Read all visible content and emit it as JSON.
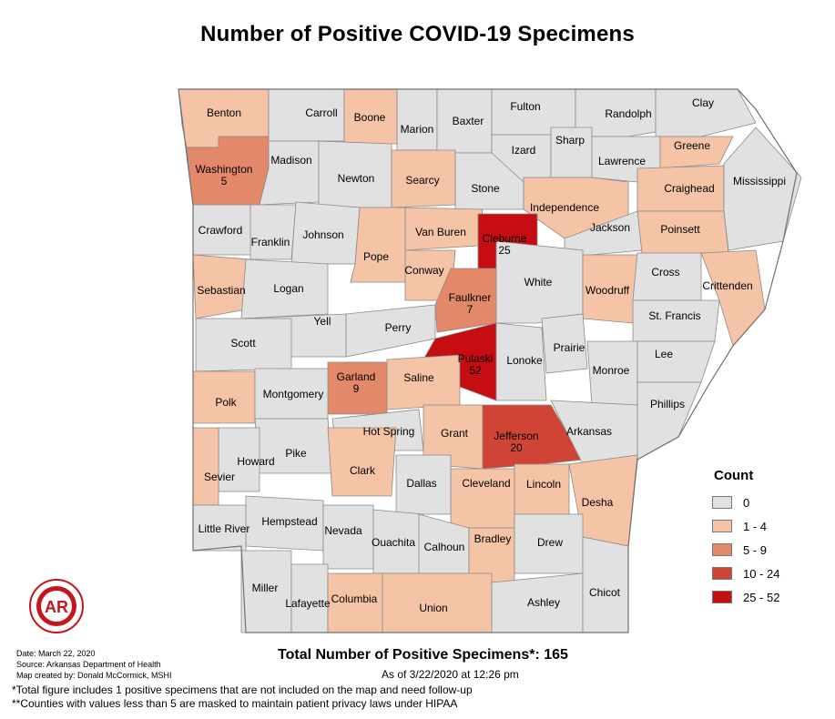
{
  "title": "Number of Positive COVID-19 Specimens",
  "legend": {
    "title": "Count",
    "classes": [
      {
        "label": "0",
        "color": "#e1e1e1"
      },
      {
        "label": "1 - 4",
        "color": "#f5c3a5"
      },
      {
        "label": "5 - 9",
        "color": "#e3896a"
      },
      {
        "label": "10 - 24",
        "color": "#cf4434"
      },
      {
        "label": "25 - 52",
        "color": "#c50d12"
      }
    ]
  },
  "counties": [
    {
      "name": "Benton",
      "cls": 1
    },
    {
      "name": "Carroll",
      "cls": 0
    },
    {
      "name": "Boone",
      "cls": 1
    },
    {
      "name": "Marion",
      "cls": 0
    },
    {
      "name": "Baxter",
      "cls": 0
    },
    {
      "name": "Fulton",
      "cls": 0
    },
    {
      "name": "Randolph",
      "cls": 0
    },
    {
      "name": "Clay",
      "cls": 0
    },
    {
      "name": "Washington",
      "count": "5",
      "cls": 2
    },
    {
      "name": "Madison",
      "cls": 0
    },
    {
      "name": "Newton",
      "cls": 0
    },
    {
      "name": "Searcy",
      "cls": 1
    },
    {
      "name": "Stone",
      "cls": 0
    },
    {
      "name": "Izard",
      "cls": 0
    },
    {
      "name": "Sharp",
      "cls": 0
    },
    {
      "name": "Lawrence",
      "cls": 0
    },
    {
      "name": "Greene",
      "cls": 1
    },
    {
      "name": "Craighead",
      "cls": 1
    },
    {
      "name": "Mississippi",
      "cls": 0
    },
    {
      "name": "Independence",
      "cls": 1
    },
    {
      "name": "Crawford",
      "cls": 0
    },
    {
      "name": "Franklin",
      "cls": 0
    },
    {
      "name": "Johnson",
      "cls": 0
    },
    {
      "name": "Pope",
      "cls": 1
    },
    {
      "name": "Van Buren",
      "cls": 1
    },
    {
      "name": "Cleburne",
      "count": "25",
      "cls": 4
    },
    {
      "name": "Jackson",
      "cls": 0
    },
    {
      "name": "Poinsett",
      "cls": 1
    },
    {
      "name": "Sebastian",
      "cls": 1
    },
    {
      "name": "Logan",
      "cls": 0
    },
    {
      "name": "Conway",
      "cls": 1
    },
    {
      "name": "Faulkner",
      "count": "7",
      "cls": 2
    },
    {
      "name": "White",
      "cls": 0
    },
    {
      "name": "Woodruff",
      "cls": 1
    },
    {
      "name": "Cross",
      "cls": 0
    },
    {
      "name": "Crittenden",
      "cls": 1
    },
    {
      "name": "Yell",
      "cls": 0
    },
    {
      "name": "Perry",
      "cls": 0
    },
    {
      "name": "Pulaski",
      "count": "52",
      "cls": 4
    },
    {
      "name": "Lonoke",
      "cls": 0
    },
    {
      "name": "Prairie",
      "cls": 0
    },
    {
      "name": "St. Francis",
      "cls": 0
    },
    {
      "name": "Scott",
      "cls": 0
    },
    {
      "name": "Garland",
      "count": "9",
      "cls": 2
    },
    {
      "name": "Saline",
      "cls": 1
    },
    {
      "name": "Monroe",
      "cls": 0
    },
    {
      "name": "Lee",
      "cls": 0
    },
    {
      "name": "Polk",
      "cls": 1
    },
    {
      "name": "Montgomery",
      "cls": 0
    },
    {
      "name": "Phillips",
      "cls": 0
    },
    {
      "name": "Hot Spring",
      "cls": 0
    },
    {
      "name": "Grant",
      "cls": 1
    },
    {
      "name": "Jefferson",
      "count": "20",
      "cls": 3
    },
    {
      "name": "Arkansas",
      "cls": 0
    },
    {
      "name": "Pike",
      "cls": 0
    },
    {
      "name": "Howard",
      "cls": 0
    },
    {
      "name": "Clark",
      "cls": 1
    },
    {
      "name": "Sevier",
      "cls": 1
    },
    {
      "name": "Dallas",
      "cls": 0
    },
    {
      "name": "Cleveland",
      "cls": 1
    },
    {
      "name": "Lincoln",
      "cls": 1
    },
    {
      "name": "Desha",
      "cls": 1
    },
    {
      "name": "Hempstead",
      "cls": 0
    },
    {
      "name": "Little River",
      "cls": 0
    },
    {
      "name": "Nevada",
      "cls": 0
    },
    {
      "name": "Ouachita",
      "cls": 0
    },
    {
      "name": "Calhoun",
      "cls": 0
    },
    {
      "name": "Bradley",
      "cls": 1
    },
    {
      "name": "Drew",
      "cls": 0
    },
    {
      "name": "Miller",
      "cls": 0
    },
    {
      "name": "Lafayette",
      "cls": 0
    },
    {
      "name": "Columbia",
      "cls": 1
    },
    {
      "name": "Union",
      "cls": 1
    },
    {
      "name": "Ashley",
      "cls": 0
    },
    {
      "name": "Chicot",
      "cls": 0
    }
  ],
  "seal_text": "AR",
  "total": "Total Number of Positive Specimens*: 165",
  "as_of": "As of 3/22/2020 at 12:26 pm",
  "meta": {
    "date": "Date: March 22, 2020",
    "source": "Source: Arkansas Department of Health",
    "created_by": "Map created by: Donald McCormick, MSHI"
  },
  "notes": [
    "*Total figure includes 1 positive specimens that are not included on the map and need follow-up",
    "**Counties with values less than 5 are masked to maintain patient privacy laws under HIPAA"
  ]
}
